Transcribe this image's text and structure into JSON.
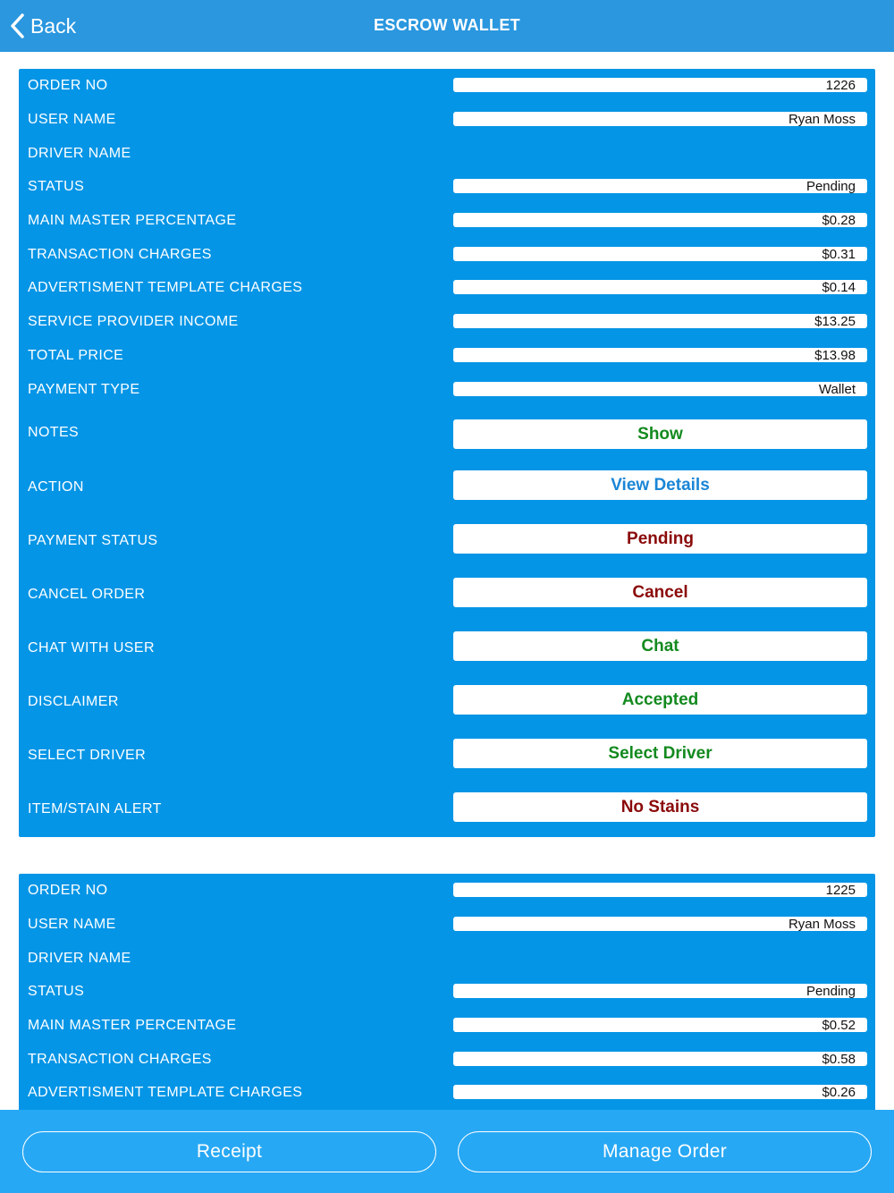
{
  "header": {
    "back_label": "Back",
    "title": "ESCROW WALLET"
  },
  "colors": {
    "header_bg": "#2a97df",
    "card_bg": "#0595e6",
    "footer_bg": "#27a8f4",
    "green": "#138a1f",
    "blue": "#1a86d6",
    "red": "#8b0a0a"
  },
  "orders": [
    {
      "fields": [
        {
          "label": "ORDER NO",
          "value": "1226"
        },
        {
          "label": "USER NAME",
          "value": "Ryan Moss"
        },
        {
          "label": "DRIVER NAME",
          "value": ""
        },
        {
          "label": "STATUS",
          "value": "Pending"
        },
        {
          "label": "MAIN MASTER PERCENTAGE",
          "value": "$0.28"
        },
        {
          "label": "TRANSACTION CHARGES",
          "value": "$0.31"
        },
        {
          "label": "ADVERTISMENT TEMPLATE CHARGES",
          "value": "$0.14"
        },
        {
          "label": "SERVICE PROVIDER INCOME",
          "value": "$13.25"
        },
        {
          "label": "TOTAL PRICE",
          "value": "$13.98"
        },
        {
          "label": "PAYMENT TYPE",
          "value": "Wallet"
        }
      ],
      "actions": [
        {
          "label": "NOTES",
          "button": "Show",
          "color": "#138a1f"
        },
        {
          "label": "ACTION",
          "button": "View Details",
          "color": "#1a86d6"
        },
        {
          "label": "PAYMENT STATUS",
          "button": "Pending",
          "color": "#8b0a0a"
        },
        {
          "label": "CANCEL ORDER",
          "button": "Cancel",
          "color": "#8b0a0a"
        },
        {
          "label": "CHAT WITH USER",
          "button": "Chat",
          "color": "#138a1f"
        },
        {
          "label": "DISCLAIMER",
          "button": "Accepted",
          "color": "#138a1f"
        },
        {
          "label": "SELECT DRIVER",
          "button": "Select Driver",
          "color": "#138a1f"
        },
        {
          "label": "ITEM/STAIN ALERT",
          "button": "No Stains",
          "color": "#8b0a0a"
        }
      ]
    },
    {
      "fields": [
        {
          "label": "ORDER NO",
          "value": "1225"
        },
        {
          "label": "USER NAME",
          "value": "Ryan Moss"
        },
        {
          "label": "DRIVER NAME",
          "value": ""
        },
        {
          "label": "STATUS",
          "value": "Pending"
        },
        {
          "label": "MAIN MASTER PERCENTAGE",
          "value": "$0.52"
        },
        {
          "label": "TRANSACTION CHARGES",
          "value": "$0.58"
        },
        {
          "label": "ADVERTISMENT TEMPLATE CHARGES",
          "value": "$0.26"
        }
      ]
    }
  ],
  "footer": {
    "receipt_label": "Receipt",
    "manage_label": "Manage Order"
  }
}
